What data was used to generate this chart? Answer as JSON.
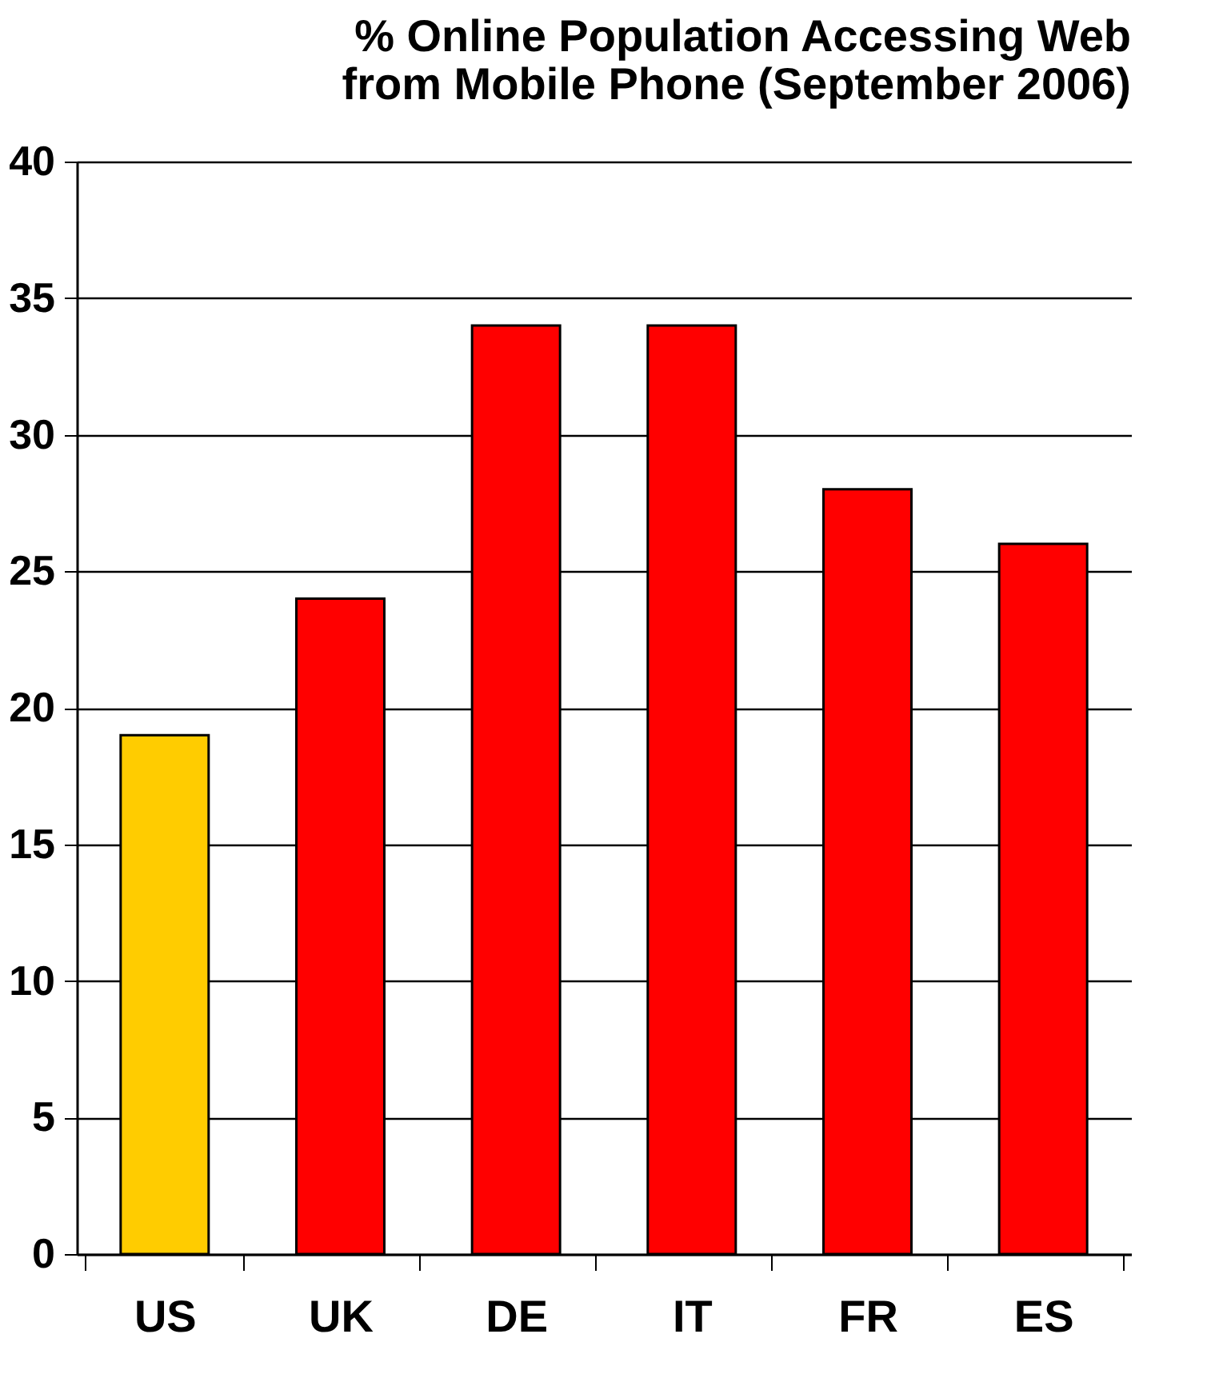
{
  "chart_data": {
    "type": "bar",
    "title": "% Online Population Accessing Web from Mobile Phone (September 2006)",
    "categories": [
      "US",
      "UK",
      "DE",
      "IT",
      "FR",
      "ES"
    ],
    "values": [
      19,
      24,
      34,
      34,
      28,
      26
    ],
    "colors": [
      "#ffcc00",
      "#ff0000",
      "#ff0000",
      "#ff0000",
      "#ff0000",
      "#ff0000"
    ],
    "ylim": [
      0,
      40
    ],
    "yticks": [
      0,
      5,
      10,
      15,
      20,
      25,
      30,
      35,
      40
    ],
    "grid": "y"
  }
}
